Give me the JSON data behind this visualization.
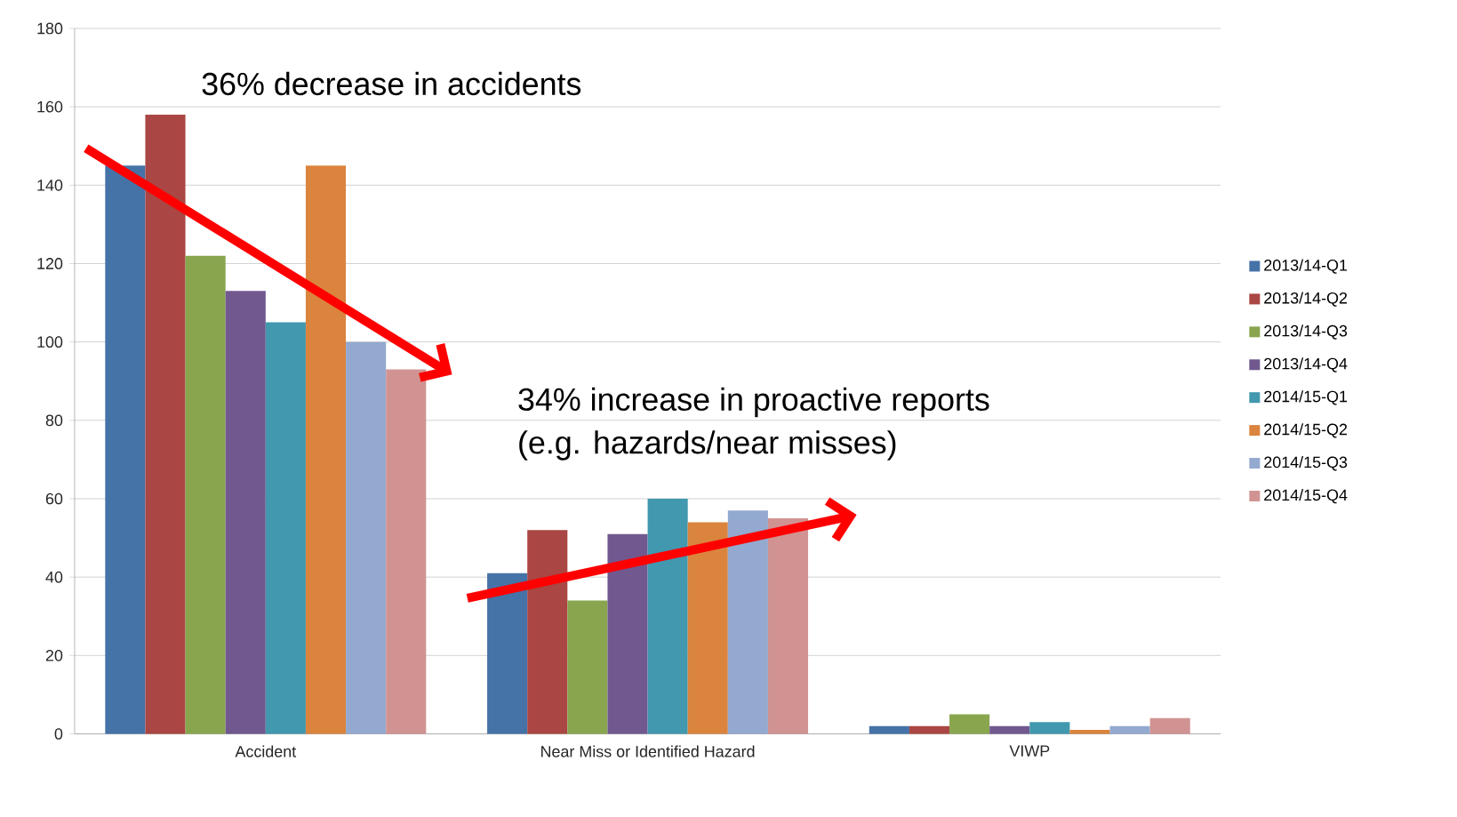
{
  "chart_data": {
    "type": "bar",
    "categories": [
      "Accident",
      "Near Miss or Identified Hazard",
      "VIWP"
    ],
    "series": [
      {
        "name": "2013/14-Q1",
        "color": "#4572a7",
        "values": [
          145,
          41,
          2
        ]
      },
      {
        "name": "2013/14-Q2",
        "color": "#aa4643",
        "values": [
          158,
          52,
          2
        ]
      },
      {
        "name": "2013/14-Q3",
        "color": "#89a54e",
        "values": [
          122,
          34,
          5
        ]
      },
      {
        "name": "2013/14-Q4",
        "color": "#71588f",
        "values": [
          113,
          51,
          2
        ]
      },
      {
        "name": "2014/15-Q1",
        "color": "#4198af",
        "values": [
          105,
          60,
          3
        ]
      },
      {
        "name": "2014/15-Q2",
        "color": "#db843d",
        "values": [
          145,
          54,
          1
        ]
      },
      {
        "name": "2014/15-Q3",
        "color": "#93a9cf",
        "values": [
          100,
          57,
          2
        ]
      },
      {
        "name": "2014/15-Q4",
        "color": "#d19392",
        "values": [
          93,
          55,
          4
        ]
      }
    ],
    "ylim": [
      0,
      180
    ],
    "yticks": [
      0,
      20,
      40,
      60,
      80,
      100,
      120,
      140,
      160,
      180
    ],
    "grid": "y",
    "legend": "right",
    "annotations": [
      "36% decrease in accidents",
      "34% increase in proactive reports",
      "(e.g. hazards/near misses)"
    ]
  }
}
